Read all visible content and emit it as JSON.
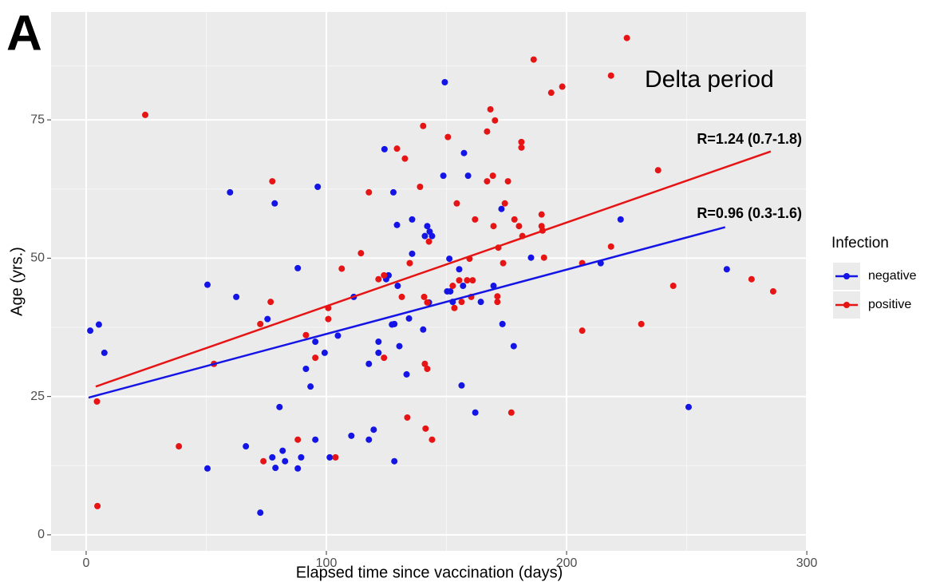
{
  "panel_label": "A",
  "chart_data": {
    "type": "scatter",
    "xlabel": "Elapsed time since vaccination (days)",
    "ylabel": "Age (yrs.)",
    "xlim": [
      -14.6,
      300.3
    ],
    "ylim": [
      -2.9,
      94.5
    ],
    "xticks": [
      0,
      100,
      200,
      300
    ],
    "yticks": [
      0,
      25,
      50,
      75
    ],
    "grid": true,
    "legend_title": "Infection",
    "legend_position": "right",
    "annotations": [
      "Delta period",
      "R=1.24 (0.7-1.8)",
      "R=0.96 (0.3-1.6)"
    ],
    "series": [
      {
        "name": "negative",
        "color": "#1414e6",
        "x": [
          1.7,
          5.3,
          7.6,
          50.5,
          50.5,
          59.9,
          62.5,
          66.5,
          72.5,
          75.5,
          77.5,
          78.5,
          78.8,
          80.5,
          81.8,
          82.8,
          88.1,
          88.1,
          89.5,
          91.5,
          93.4,
          95.4,
          95.4,
          96.4,
          99.3,
          101.4,
          104.8,
          110.4,
          111.4,
          117.7,
          117.7,
          119.7,
          121.7,
          121.7,
          124.2,
          124.9,
          125.9,
          127.3,
          127.9,
          128.3,
          128.3,
          129.4,
          129.7,
          130.4,
          133.4,
          134.4,
          135.7,
          135.7,
          140.3,
          141,
          142,
          142.7,
          143,
          144,
          148.7,
          149.3,
          150.3,
          151.2,
          151.6,
          152.6,
          155.3,
          156.3,
          156.9,
          157.3,
          159,
          162,
          164.3,
          169.6,
          172.9,
          173.3,
          178,
          185.2,
          214.2,
          222.5,
          250.8,
          266.7
        ],
        "values": [
          36.9,
          38,
          32.9,
          45.2,
          12,
          61.9,
          43,
          16,
          4,
          39,
          14,
          59.9,
          12.1,
          23.1,
          15.2,
          13.3,
          48.2,
          12,
          14,
          30,
          26.8,
          34.9,
          17.2,
          62.9,
          32.9,
          14,
          36,
          17.9,
          43,
          30.9,
          17.2,
          19,
          34.9,
          32.9,
          69.7,
          46.2,
          46.9,
          38,
          61.9,
          38.1,
          13.3,
          56,
          45,
          34.1,
          29,
          39.1,
          57,
          50.8,
          37.1,
          54,
          55.8,
          42,
          54.8,
          54,
          64.9,
          81.8,
          44,
          49.9,
          44,
          42.1,
          48,
          27,
          45,
          69,
          64.9,
          22.1,
          42.1,
          45,
          58.9,
          38.1,
          34.1,
          50.1,
          49.1,
          57,
          23.1,
          48
        ]
      },
      {
        "name": "positive",
        "color": "#e61414",
        "x": [
          4.5,
          4.7,
          24.6,
          38.6,
          53.2,
          72.5,
          73.8,
          76.8,
          77.5,
          88.1,
          91.5,
          95.4,
          100.8,
          100.8,
          103.8,
          106.4,
          114.4,
          117.7,
          121.7,
          124,
          124,
          129.4,
          131.4,
          132.7,
          133.7,
          134.7,
          139,
          140.3,
          140.7,
          141,
          141.3,
          142,
          142,
          142.7,
          144,
          150.6,
          152.6,
          153.3,
          154.3,
          155.3,
          156.3,
          158.6,
          159.6,
          160.3,
          160.9,
          161.9,
          166.9,
          166.9,
          168.3,
          169.3,
          169.6,
          170.2,
          171.2,
          171.2,
          171.6,
          173.6,
          174.3,
          175.6,
          177,
          178.3,
          180.2,
          181.2,
          181.2,
          181.6,
          186.3,
          189.6,
          189.6,
          190,
          190.6,
          193.6,
          198.2,
          206.5,
          206.5,
          218.5,
          218.5,
          231.1,
          225.1,
          238.1,
          244.4,
          277,
          286
        ],
        "values": [
          24.1,
          5.2,
          75.9,
          16,
          30.9,
          38.1,
          13.3,
          42.1,
          63.9,
          17.2,
          36.1,
          32,
          41,
          39,
          14,
          48.1,
          50.9,
          61.9,
          46.2,
          32,
          46.9,
          69.8,
          43,
          68,
          21.2,
          49.1,
          62.9,
          73.9,
          43,
          30.9,
          19.2,
          30,
          42,
          53,
          17.2,
          71.9,
          45,
          41,
          59.9,
          46,
          42.1,
          46,
          49.9,
          43,
          46,
          57,
          72.9,
          63.9,
          76.9,
          64.9,
          55.8,
          74.9,
          43.1,
          42.1,
          51.9,
          49.1,
          59.9,
          63.9,
          22.1,
          57,
          55.8,
          71,
          70,
          54,
          85.9,
          57.9,
          55.8,
          55,
          50.1,
          79.9,
          81,
          36.9,
          49.1,
          83,
          52.1,
          38.1,
          89.8,
          65.9,
          45,
          46.2,
          44
        ]
      }
    ],
    "fits": [
      {
        "color": "#e61414",
        "x": [
          4,
          285
        ],
        "values": [
          26.8,
          69.3
        ]
      },
      {
        "color": "#1414e6",
        "x": [
          1,
          266
        ],
        "values": [
          24.8,
          55.6
        ]
      }
    ]
  }
}
